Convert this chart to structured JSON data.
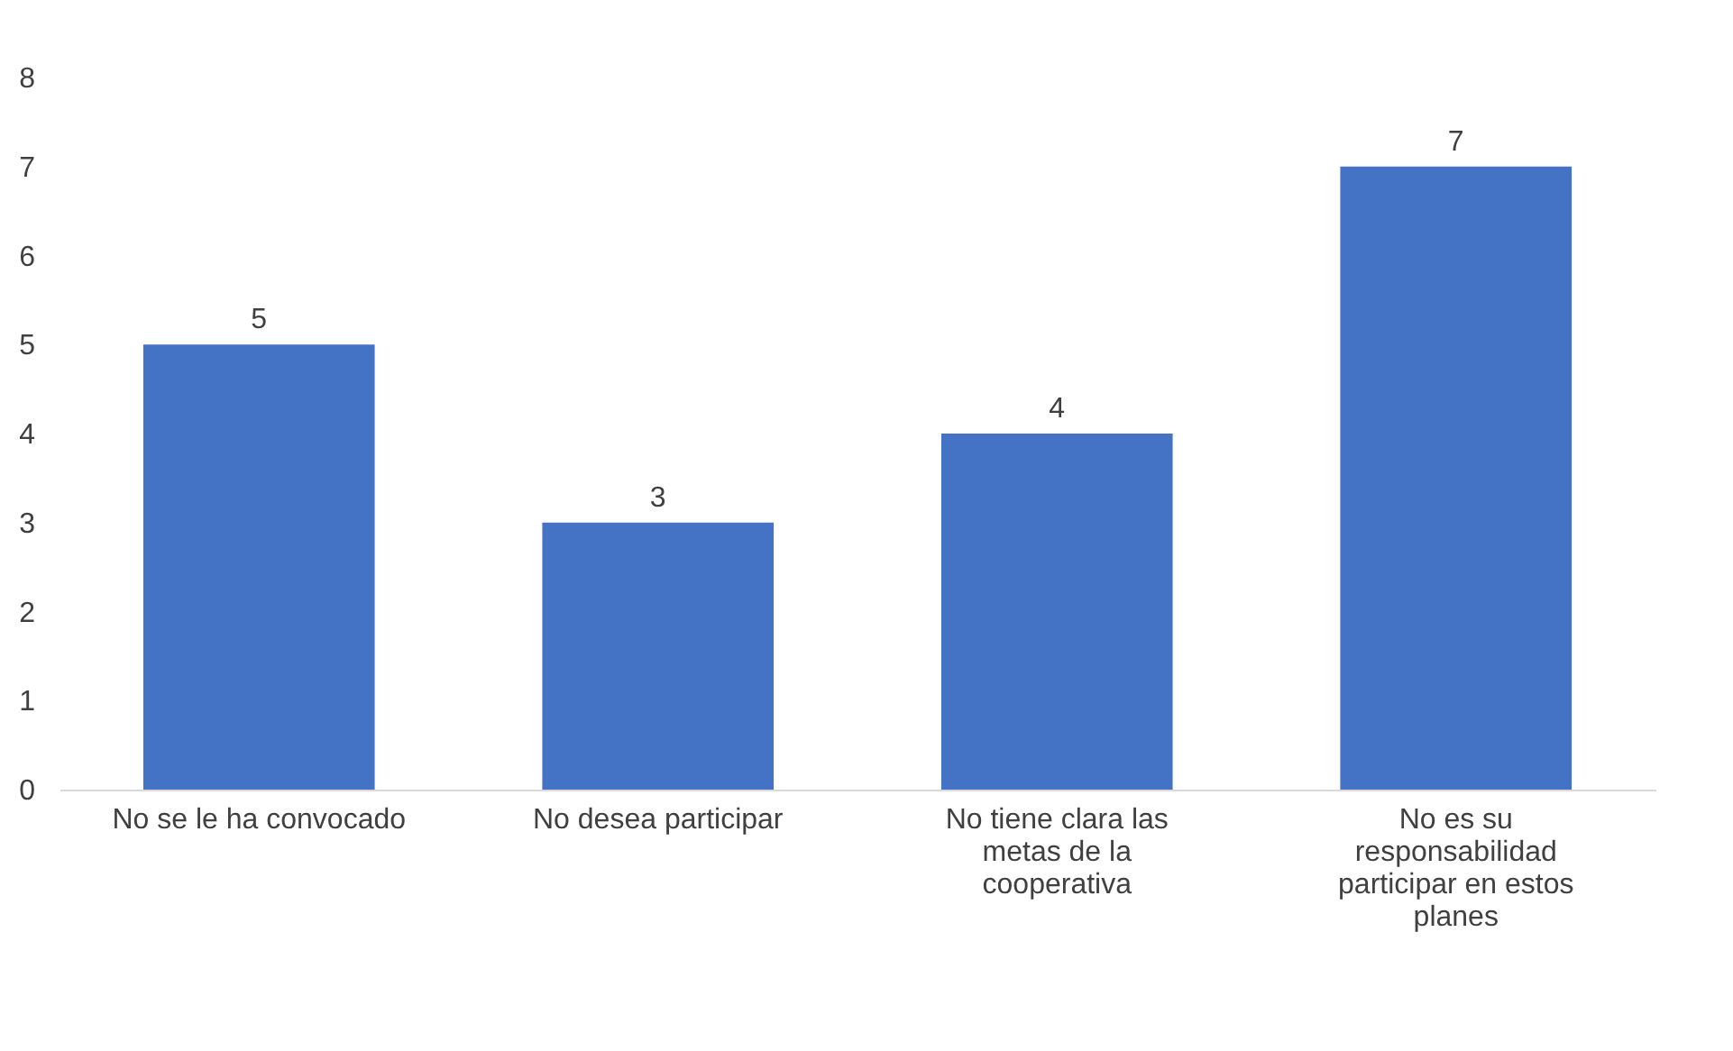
{
  "chart_data": {
    "type": "bar",
    "categories": [
      "No se le ha convocado",
      "No desea participar",
      "No tiene clara las metas de la cooperativa",
      "No es su responsabilidad participar en estos planes"
    ],
    "values": [
      5,
      3,
      4,
      7
    ],
    "color": "#4472c4",
    "ylim": [
      0,
      8
    ],
    "yticks": [
      0,
      1,
      2,
      3,
      4,
      5,
      6,
      7,
      8
    ],
    "data_labels": true
  }
}
